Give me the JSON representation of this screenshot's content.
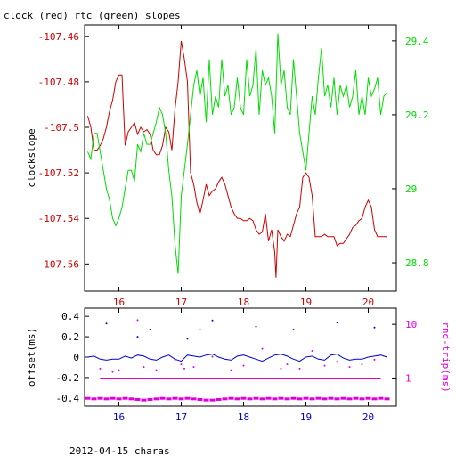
{
  "page": {
    "title": "clock (red) rtc (green) slopes",
    "footer": "2012-04-15 charas"
  },
  "colors": {
    "red": "#cc0000",
    "green": "#00dd00",
    "blue": "#0000cc",
    "magenta": "#dd00dd",
    "black": "#000000"
  },
  "chart_data": [
    {
      "type": "line",
      "ylabel": "clockslope",
      "y2label": "",
      "grid": false,
      "legend": "none",
      "xlim": [
        15.45,
        20.45
      ],
      "ylim": [
        -107.572,
        -107.455
      ],
      "y2lim": [
        28.723,
        29.443
      ],
      "x_ticks": [
        16,
        17,
        18,
        19,
        20
      ],
      "y_ticks": [
        -107.46,
        -107.48,
        -107.5,
        -107.52,
        -107.54,
        -107.56
      ],
      "y_tick_labels": [
        "-107.46",
        "-107.48",
        "-107.5",
        "-107.52",
        "-107.54",
        "-107.56"
      ],
      "y2_ticks": [
        29.4,
        29.2,
        29,
        28.8
      ],
      "y2_tick_labels": [
        "29.4",
        "29.2",
        "29",
        "28.8"
      ],
      "series": [
        {
          "axis": "left",
          "color": "#cc0000",
          "x": [
            15.5,
            15.55,
            15.6,
            15.65,
            15.7,
            15.75,
            15.8,
            15.85,
            15.9,
            15.95,
            16.0,
            16.05,
            16.1,
            16.15,
            16.2,
            16.25,
            16.3,
            16.35,
            16.4,
            16.45,
            16.5,
            16.55,
            16.6,
            16.65,
            16.7,
            16.75,
            16.8,
            16.85,
            16.9,
            16.95,
            17.0,
            17.05,
            17.1,
            17.15,
            17.2,
            17.25,
            17.3,
            17.35,
            17.4,
            17.45,
            17.5,
            17.55,
            17.6,
            17.65,
            17.7,
            17.75,
            17.8,
            17.85,
            17.9,
            17.95,
            18.0,
            18.05,
            18.1,
            18.15,
            18.2,
            18.25,
            18.3,
            18.35,
            18.4,
            18.45,
            18.5,
            18.52,
            18.55,
            18.6,
            18.65,
            18.7,
            18.75,
            18.8,
            18.85,
            18.9,
            18.95,
            19.0,
            19.05,
            19.1,
            19.15,
            19.2,
            19.25,
            19.3,
            19.35,
            19.4,
            19.45,
            19.5,
            19.55,
            19.6,
            19.65,
            19.7,
            19.75,
            19.8,
            19.85,
            19.9,
            19.95,
            20.0,
            20.05,
            20.1,
            20.15,
            20.2,
            20.25,
            20.3
          ],
          "y": [
            -107.495,
            -107.5,
            -107.51,
            -107.51,
            -107.508,
            -107.505,
            -107.5,
            -107.493,
            -107.488,
            -107.48,
            -107.477,
            -107.477,
            -107.508,
            -107.502,
            -107.5,
            -107.498,
            -107.503,
            -107.5,
            -107.502,
            -107.501,
            -107.503,
            -107.51,
            -107.512,
            -107.512,
            -107.508,
            -107.5,
            -107.502,
            -107.51,
            -107.492,
            -107.48,
            -107.462,
            -107.47,
            -107.48,
            -107.52,
            -107.525,
            -107.533,
            -107.538,
            -107.532,
            -107.525,
            -107.53,
            -107.528,
            -107.527,
            -107.524,
            -107.522,
            -107.525,
            -107.53,
            -107.535,
            -107.538,
            -107.54,
            -107.54,
            -107.541,
            -107.541,
            -107.54,
            -107.541,
            -107.545,
            -107.547,
            -107.546,
            -107.538,
            -107.55,
            -107.545,
            -107.555,
            -107.566,
            -107.545,
            -107.548,
            -107.55,
            -107.547,
            -107.548,
            -107.543,
            -107.538,
            -107.535,
            -107.522,
            -107.52,
            -107.522,
            -107.53,
            -107.548,
            -107.548,
            -107.548,
            -107.547,
            -107.548,
            -107.548,
            -107.548,
            -107.552,
            -107.551,
            -107.551,
            -107.549,
            -107.547,
            -107.544,
            -107.543,
            -107.541,
            -107.54,
            -107.535,
            -107.532,
            -107.535,
            -107.545,
            -107.548,
            -107.548,
            -107.548,
            -107.548
          ]
        },
        {
          "axis": "right",
          "color": "#00dd00",
          "x": [
            15.5,
            15.55,
            15.6,
            15.65,
            15.7,
            15.75,
            15.8,
            15.85,
            15.9,
            15.95,
            16.0,
            16.05,
            16.1,
            16.15,
            16.2,
            16.25,
            16.3,
            16.35,
            16.4,
            16.45,
            16.5,
            16.55,
            16.6,
            16.65,
            16.7,
            16.75,
            16.8,
            16.85,
            16.9,
            16.95,
            17.0,
            17.05,
            17.1,
            17.15,
            17.2,
            17.25,
            17.3,
            17.35,
            17.4,
            17.45,
            17.5,
            17.55,
            17.6,
            17.65,
            17.7,
            17.75,
            17.8,
            17.85,
            17.9,
            17.95,
            18.0,
            18.05,
            18.1,
            18.15,
            18.2,
            18.25,
            18.3,
            18.35,
            18.4,
            18.45,
            18.5,
            18.55,
            18.6,
            18.65,
            18.7,
            18.75,
            18.8,
            18.85,
            18.9,
            18.95,
            19.0,
            19.05,
            19.1,
            19.15,
            19.2,
            19.25,
            19.3,
            19.35,
            19.4,
            19.45,
            19.5,
            19.55,
            19.6,
            19.65,
            19.7,
            19.75,
            19.8,
            19.85,
            19.9,
            19.95,
            20.0,
            20.05,
            20.1,
            20.15,
            20.2,
            20.25,
            20.3
          ],
          "y": [
            29.1,
            29.08,
            29.15,
            29.15,
            29.1,
            29.05,
            29.0,
            28.97,
            28.92,
            28.9,
            28.92,
            28.95,
            29.0,
            29.05,
            29.05,
            29.02,
            29.12,
            29.1,
            29.15,
            29.12,
            29.12,
            29.15,
            29.18,
            29.22,
            29.2,
            29.15,
            29.05,
            28.98,
            28.85,
            28.77,
            28.98,
            29.05,
            29.12,
            29.2,
            29.28,
            29.32,
            29.25,
            29.3,
            29.18,
            29.35,
            29.2,
            29.25,
            29.22,
            29.35,
            29.25,
            29.28,
            29.2,
            29.22,
            29.3,
            29.22,
            29.2,
            29.35,
            29.25,
            29.28,
            29.38,
            29.2,
            29.32,
            29.28,
            29.3,
            29.25,
            29.15,
            29.42,
            29.28,
            29.32,
            29.22,
            29.2,
            29.35,
            29.25,
            29.15,
            29.1,
            29.05,
            29.15,
            29.25,
            29.2,
            29.3,
            29.38,
            29.25,
            29.28,
            29.22,
            29.3,
            29.2,
            29.28,
            29.25,
            29.28,
            29.22,
            29.25,
            29.32,
            29.2,
            29.25,
            29.2,
            29.3,
            29.25,
            29.27,
            29.3,
            29.2,
            29.25,
            29.26
          ]
        }
      ]
    },
    {
      "type": "scatter",
      "ylabel": "offset(ms)",
      "y2label": "rnd-trip(ms)",
      "grid": false,
      "legend": "none",
      "xlim": [
        15.45,
        20.45
      ],
      "ylim": [
        -0.48,
        0.48
      ],
      "y2scale": "log",
      "y2lim": [
        0.3,
        20
      ],
      "x_ticks": [
        16,
        17,
        18,
        19,
        20
      ],
      "y_ticks": [
        0.4,
        0.2,
        0,
        -0.2,
        -0.4
      ],
      "y_tick_labels": [
        "0.4",
        "0.2",
        "0",
        "-0.2",
        "-0.4"
      ],
      "y2_ticks": [
        10,
        1
      ],
      "y2_tick_labels": [
        "10",
        "1"
      ],
      "series": [
        {
          "axis": "left",
          "color": "#0000cc",
          "mode": "line",
          "x": [
            15.5,
            15.6,
            15.7,
            15.8,
            15.9,
            16.0,
            16.1,
            16.2,
            16.3,
            16.4,
            16.5,
            16.6,
            16.7,
            16.8,
            16.9,
            17.0,
            17.1,
            17.2,
            17.3,
            17.4,
            17.5,
            17.6,
            17.7,
            17.8,
            17.9,
            18.0,
            18.1,
            18.2,
            18.3,
            18.4,
            18.5,
            18.6,
            18.7,
            18.8,
            18.9,
            19.0,
            19.1,
            19.2,
            19.3,
            19.4,
            19.5,
            19.6,
            19.7,
            19.8,
            19.9,
            20.0,
            20.1,
            20.2,
            20.3
          ],
          "y": [
            0.0,
            0.01,
            -0.02,
            -0.03,
            -0.02,
            -0.02,
            0.01,
            -0.01,
            0.02,
            0.01,
            -0.02,
            -0.03,
            0.0,
            0.02,
            -0.02,
            -0.04,
            0.02,
            0.01,
            0.0,
            0.02,
            0.03,
            0.0,
            -0.02,
            -0.03,
            0.01,
            0.02,
            0.0,
            -0.02,
            -0.04,
            -0.01,
            0.02,
            0.03,
            0.01,
            -0.02,
            -0.04,
            0.0,
            0.01,
            -0.02,
            -0.03,
            0.02,
            0.03,
            -0.01,
            -0.03,
            -0.02,
            -0.02,
            0.0,
            0.01,
            0.02,
            0.0
          ]
        },
        {
          "axis": "left",
          "color": "#0000cc",
          "mode": "points",
          "x": [
            15.8,
            16.3,
            16.5,
            17.1,
            17.5,
            18.2,
            18.8,
            19.5,
            20.1
          ],
          "y": [
            0.33,
            0.2,
            0.27,
            0.18,
            0.36,
            0.3,
            0.27,
            0.34,
            0.29
          ]
        },
        {
          "axis": "right",
          "color": "#dd00dd",
          "mode": "band",
          "x": [
            15.5,
            15.6,
            15.7,
            15.8,
            15.9,
            16.0,
            16.1,
            16.2,
            16.3,
            16.4,
            16.5,
            16.6,
            16.7,
            16.8,
            16.9,
            17.0,
            17.1,
            17.2,
            17.3,
            17.4,
            17.5,
            17.6,
            17.7,
            17.8,
            17.9,
            18.0,
            18.1,
            18.2,
            18.3,
            18.4,
            18.5,
            18.6,
            18.7,
            18.8,
            18.9,
            19.0,
            19.1,
            19.2,
            19.3,
            19.4,
            19.5,
            19.6,
            19.7,
            19.8,
            19.9,
            20.0,
            20.1,
            20.2,
            20.3
          ],
          "y": [
            0.42,
            0.41,
            0.42,
            0.41,
            0.42,
            0.41,
            0.42,
            0.41,
            0.4,
            0.39,
            0.4,
            0.41,
            0.42,
            0.41,
            0.42,
            0.41,
            0.42,
            0.41,
            0.4,
            0.39,
            0.39,
            0.4,
            0.41,
            0.42,
            0.41,
            0.42,
            0.41,
            0.42,
            0.41,
            0.42,
            0.41,
            0.42,
            0.41,
            0.42,
            0.41,
            0.42,
            0.41,
            0.42,
            0.41,
            0.42,
            0.41,
            0.42,
            0.41,
            0.42,
            0.41,
            0.42,
            0.41,
            0.42,
            0.41
          ]
        },
        {
          "axis": "right",
          "color": "#dd00dd",
          "mode": "points",
          "x": [
            15.7,
            15.9,
            16.0,
            16.3,
            16.4,
            16.6,
            16.9,
            17.0,
            17.05,
            17.2,
            17.3,
            17.5,
            17.8,
            18.0,
            18.3,
            18.6,
            18.7,
            18.9,
            19.1,
            19.3,
            19.5,
            19.7,
            19.9,
            20.1
          ],
          "y": [
            1.5,
            1.3,
            1.4,
            12,
            1.6,
            1.4,
            2.2,
            1.8,
            1.5,
            1.6,
            8,
            2.5,
            1.4,
            1.7,
            3.5,
            1.5,
            1.8,
            1.5,
            3.2,
            1.7,
            2.0,
            1.6,
            1.8,
            2.2
          ]
        },
        {
          "axis": "right",
          "color": "#dd00dd",
          "mode": "line",
          "x": [
            15.7,
            15.8,
            15.9,
            16.0,
            16.1,
            16.2,
            16.3,
            16.4,
            16.5,
            16.6,
            16.7,
            16.8,
            16.9,
            17.0,
            17.1,
            17.2,
            17.3,
            17.4,
            17.5,
            17.6,
            17.7,
            17.8,
            17.9,
            18.0,
            18.1,
            18.2,
            18.3,
            18.4,
            18.5,
            18.6,
            18.7,
            18.8,
            18.9,
            19.0,
            19.1,
            19.2,
            19.3,
            19.4,
            19.5,
            19.6,
            19.7,
            19.8,
            19.9,
            20.0,
            20.1,
            20.2
          ],
          "y": [
            1.0,
            1.0,
            1.0,
            1.0,
            1.0,
            1.0,
            1.0,
            1.0,
            1.0,
            1.0,
            1.0,
            1.0,
            1.0,
            1.0,
            1.0,
            1.0,
            1.0,
            1.0,
            1.0,
            1.0,
            1.0,
            1.0,
            1.0,
            1.0,
            1.0,
            1.0,
            1.0,
            1.0,
            1.0,
            1.0,
            1.0,
            1.0,
            1.0,
            1.0,
            1.0,
            1.0,
            1.0,
            1.0,
            1.0,
            1.0,
            1.0,
            1.0,
            1.0,
            1.0,
            1.0,
            1.0
          ]
        }
      ]
    }
  ]
}
